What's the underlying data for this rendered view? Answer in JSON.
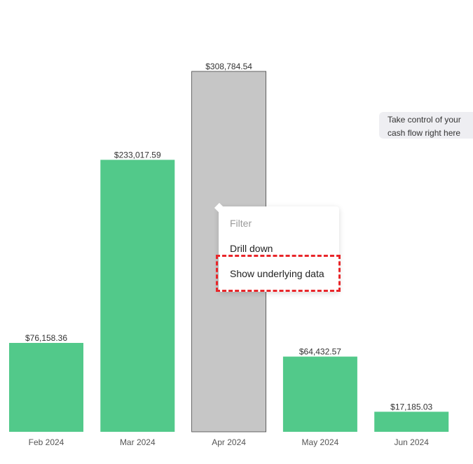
{
  "chart_data": {
    "type": "bar",
    "categories": [
      "Feb 2024",
      "Mar 2024",
      "Apr 2024",
      "May 2024",
      "Jun 2024"
    ],
    "values": [
      76158.36,
      233017.59,
      308784.54,
      64432.57,
      17185.03
    ],
    "value_labels": [
      "$76,158.36",
      "$233,017.59",
      "$308,784.54",
      "$64,432.57",
      "$17,185.03"
    ],
    "colors": [
      "#52c98a",
      "#52c98a",
      "#c6c6c6",
      "#52c98a",
      "#52c98a"
    ]
  },
  "tooltip": {
    "text": "Take control of your cash flow right here"
  },
  "menu": {
    "items": [
      "Filter",
      "Drill down",
      "Show underlying data"
    ]
  }
}
